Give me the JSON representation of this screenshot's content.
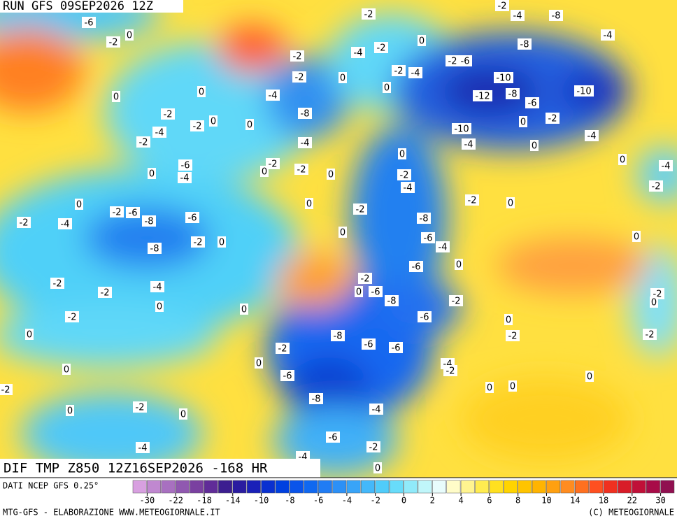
{
  "header": {
    "run": "RUN GFS 09SEP2026 12Z",
    "field": "DIF TMP Z850 12Z16SEP2026 -168 HR",
    "source": "DATI NCEP GFS 0.25°",
    "credit": "MTG-GFS - ELABORAZIONE WWW.METEOGIORNALE.IT",
    "copyright": "(C) METEOGIORNALE"
  },
  "contour_labels": [
    -6,
    0,
    -2,
    -2,
    -2,
    -4,
    -8,
    -4,
    -2,
    -4,
    0,
    -2,
    -2,
    -4,
    -2,
    -6,
    -8,
    -10,
    -12,
    -8,
    -6,
    -10,
    0,
    0,
    -2,
    -4,
    -8,
    0,
    0,
    -2,
    -4,
    -2,
    -2,
    0,
    0,
    -4,
    -10,
    -4,
    0,
    -2,
    -4,
    0,
    0,
    -4,
    -2,
    0,
    -6,
    -4,
    -2,
    -2,
    0,
    0,
    0,
    -2,
    -4,
    -2,
    0,
    0,
    -2,
    -4,
    -2,
    -6,
    -8,
    -6,
    0,
    -2,
    0,
    -8,
    -6,
    -4,
    -2,
    0,
    -8,
    -2,
    -2,
    -4,
    0,
    -6,
    0,
    -2,
    -6,
    0,
    -8,
    -2,
    -6,
    0,
    -2,
    0,
    0,
    -2,
    0,
    0,
    -2,
    -2,
    -8,
    -6,
    -6,
    -2,
    0,
    0,
    -6,
    -4,
    -2,
    0,
    0,
    0,
    -8,
    -4,
    -2,
    0,
    0,
    -6,
    -2,
    -4,
    0,
    -4,
    -2
  ],
  "colorbar": {
    "ticks": [
      -30,
      -22,
      -18,
      -14,
      -10,
      -8,
      -6,
      -4,
      -2,
      0,
      2,
      4,
      6,
      8,
      10,
      14,
      18,
      22,
      30
    ],
    "colors": [
      "#d8a0e0",
      "#c088d0",
      "#a870c0",
      "#9058b0",
      "#7a40a0",
      "#602c98",
      "#3c1e90",
      "#2a1ca0",
      "#1a20b8",
      "#0a30d0",
      "#0040e0",
      "#0a54ea",
      "#1068f0",
      "#207cf4",
      "#2c90f6",
      "#38a4f8",
      "#44b8fa",
      "#50ccfa",
      "#68dcfa",
      "#90eafa",
      "#c0f6fa",
      "#e8fcfc",
      "#fffcc8",
      "#fff490",
      "#ffec50",
      "#ffe020",
      "#ffd400",
      "#ffc400",
      "#ffb400",
      "#ffa010",
      "#ff8c20",
      "#ff7020",
      "#ff5020",
      "#f03020",
      "#d81c28",
      "#c01038",
      "#a80c48",
      "#901050"
    ]
  }
}
